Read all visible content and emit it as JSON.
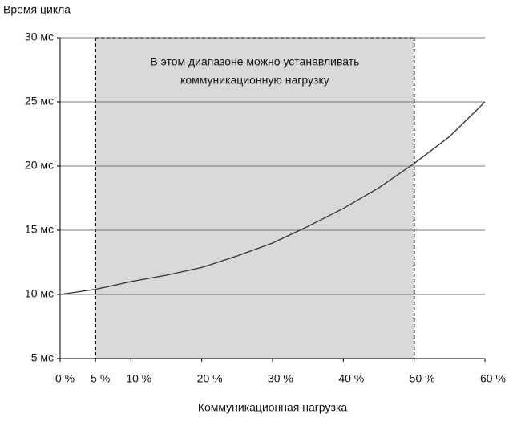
{
  "chart_data": {
    "type": "line",
    "ylabel": "Время цикла",
    "xlabel": "Коммуникационная нагрузка",
    "x": [
      0,
      5,
      10,
      15,
      20,
      25,
      30,
      35,
      40,
      45,
      50,
      55,
      60
    ],
    "values": [
      10,
      10.4,
      11,
      11.5,
      12.1,
      13,
      14,
      15.3,
      16.7,
      18.3,
      20.2,
      22.3,
      25
    ],
    "color": "#333333",
    "xlim": [
      0,
      60
    ],
    "ylim": [
      5,
      30
    ],
    "xticks": [
      {
        "value": 0,
        "label": "0 %"
      },
      {
        "value": 5,
        "label": "5 %"
      },
      {
        "value": 10,
        "label": "10 %"
      },
      {
        "value": 20,
        "label": "20 %"
      },
      {
        "value": 30,
        "label": "30 %"
      },
      {
        "value": 40,
        "label": "40 %"
      },
      {
        "value": 50,
        "label": "50 %"
      },
      {
        "value": 60,
        "label": "60 %"
      }
    ],
    "yticks": [
      {
        "value": 5,
        "label": "5 мс"
      },
      {
        "value": 10,
        "label": "10 мс"
      },
      {
        "value": 15,
        "label": "15 мс"
      },
      {
        "value": 20,
        "label": "20 мс"
      },
      {
        "value": 25,
        "label": "25 мс"
      },
      {
        "value": 30,
        "label": "30 мс"
      }
    ],
    "grid": true,
    "shaded_region": {
      "x": [
        5,
        50
      ],
      "color": "#d9d9d9",
      "annotation": [
        "В этом диапазоне можно устанавливать",
        "коммуникационную нагрузку"
      ]
    }
  }
}
